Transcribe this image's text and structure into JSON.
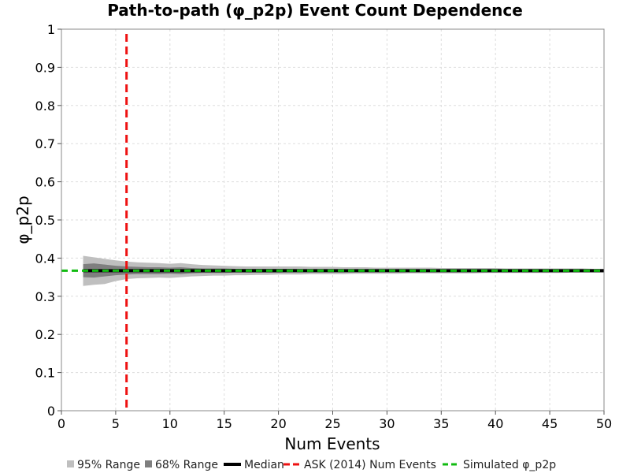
{
  "chart_data": {
    "type": "line",
    "title": "Path-to-path (φ_p2p) Event Count Dependence",
    "xlabel": "Num Events",
    "ylabel": "φ_p2p",
    "xlim": [
      0,
      50
    ],
    "ylim": [
      0,
      1
    ],
    "x_ticks": [
      "0",
      "5",
      "10",
      "15",
      "20",
      "25",
      "30",
      "35",
      "40",
      "45",
      "50"
    ],
    "y_ticks": [
      "0",
      "0.1",
      "0.2",
      "0.3",
      "0.4",
      "0.5",
      "0.6",
      "0.7",
      "0.8",
      "0.9",
      "1"
    ],
    "grid": true,
    "legend_position": "bottom",
    "x": [
      2,
      3,
      4,
      5,
      6,
      7,
      8,
      9,
      10,
      11,
      12,
      13,
      14,
      15,
      16,
      17,
      18,
      19,
      20,
      21,
      22,
      23,
      24,
      25,
      26,
      27,
      28,
      29,
      30,
      31,
      32,
      33,
      34,
      35,
      36,
      37,
      38,
      39,
      40,
      41,
      42,
      43,
      44,
      45,
      46,
      47,
      48,
      49,
      50
    ],
    "series": [
      {
        "name": "95% Range",
        "kind": "band",
        "color": "#bfbfbf",
        "lower": [
          0.327,
          0.33,
          0.332,
          0.34,
          0.345,
          0.347,
          0.348,
          0.349,
          0.348,
          0.35,
          0.352,
          0.353,
          0.354,
          0.354,
          0.355,
          0.355,
          0.356,
          0.356,
          0.357,
          0.357,
          0.357,
          0.358,
          0.358,
          0.358,
          0.358,
          0.359,
          0.359,
          0.359,
          0.359,
          0.359,
          0.36,
          0.36,
          0.36,
          0.36,
          0.36,
          0.36,
          0.36,
          0.361,
          0.361,
          0.361,
          0.361,
          0.361,
          0.361,
          0.361,
          0.361,
          0.362,
          0.362,
          0.362,
          0.362
        ],
        "upper": [
          0.406,
          0.402,
          0.398,
          0.394,
          0.391,
          0.389,
          0.388,
          0.387,
          0.385,
          0.387,
          0.384,
          0.382,
          0.381,
          0.38,
          0.379,
          0.378,
          0.378,
          0.378,
          0.378,
          0.378,
          0.378,
          0.377,
          0.377,
          0.377,
          0.376,
          0.376,
          0.376,
          0.375,
          0.375,
          0.375,
          0.375,
          0.375,
          0.375,
          0.374,
          0.374,
          0.374,
          0.374,
          0.374,
          0.374,
          0.373,
          0.373,
          0.373,
          0.373,
          0.373,
          0.373,
          0.373,
          0.373,
          0.372,
          0.372
        ]
      },
      {
        "name": "68% Range",
        "kind": "band",
        "color": "#7f7f7f",
        "lower": [
          0.35,
          0.349,
          0.352,
          0.355,
          0.357,
          0.358,
          0.358,
          0.358,
          0.359,
          0.358,
          0.36,
          0.361,
          0.361,
          0.361,
          0.362,
          0.362,
          0.362,
          0.362,
          0.362,
          0.363,
          0.363,
          0.363,
          0.363,
          0.363,
          0.363,
          0.364,
          0.364,
          0.364,
          0.364,
          0.364,
          0.364,
          0.364,
          0.364,
          0.364,
          0.365,
          0.365,
          0.365,
          0.365,
          0.365,
          0.365,
          0.365,
          0.365,
          0.365,
          0.365,
          0.365,
          0.365,
          0.365,
          0.365,
          0.365
        ],
        "upper": [
          0.384,
          0.386,
          0.383,
          0.38,
          0.378,
          0.377,
          0.376,
          0.376,
          0.375,
          0.376,
          0.374,
          0.373,
          0.373,
          0.373,
          0.372,
          0.372,
          0.372,
          0.372,
          0.372,
          0.372,
          0.371,
          0.371,
          0.371,
          0.371,
          0.371,
          0.37,
          0.37,
          0.37,
          0.37,
          0.37,
          0.37,
          0.37,
          0.37,
          0.37,
          0.369,
          0.369,
          0.369,
          0.369,
          0.369,
          0.369,
          0.369,
          0.369,
          0.369,
          0.369,
          0.369,
          0.369,
          0.369,
          0.369,
          0.369
        ]
      },
      {
        "name": "Median",
        "kind": "line",
        "color": "#000000",
        "values": [
          0.367,
          0.367,
          0.367,
          0.367,
          0.367,
          0.367,
          0.367,
          0.367,
          0.367,
          0.367,
          0.367,
          0.367,
          0.367,
          0.367,
          0.367,
          0.367,
          0.367,
          0.367,
          0.367,
          0.367,
          0.367,
          0.367,
          0.367,
          0.367,
          0.367,
          0.367,
          0.367,
          0.367,
          0.367,
          0.367,
          0.367,
          0.367,
          0.367,
          0.367,
          0.367,
          0.367,
          0.367,
          0.367,
          0.367,
          0.367,
          0.367,
          0.367,
          0.367,
          0.367,
          0.367,
          0.367,
          0.367,
          0.367,
          0.367
        ]
      },
      {
        "name": "ASK (2014) Num Events",
        "kind": "vline",
        "color": "#ee1111",
        "x_value": 6
      },
      {
        "name": "Simulated φ_p2p",
        "kind": "hline",
        "color": "#11bb11",
        "y_value": 0.367
      }
    ]
  }
}
